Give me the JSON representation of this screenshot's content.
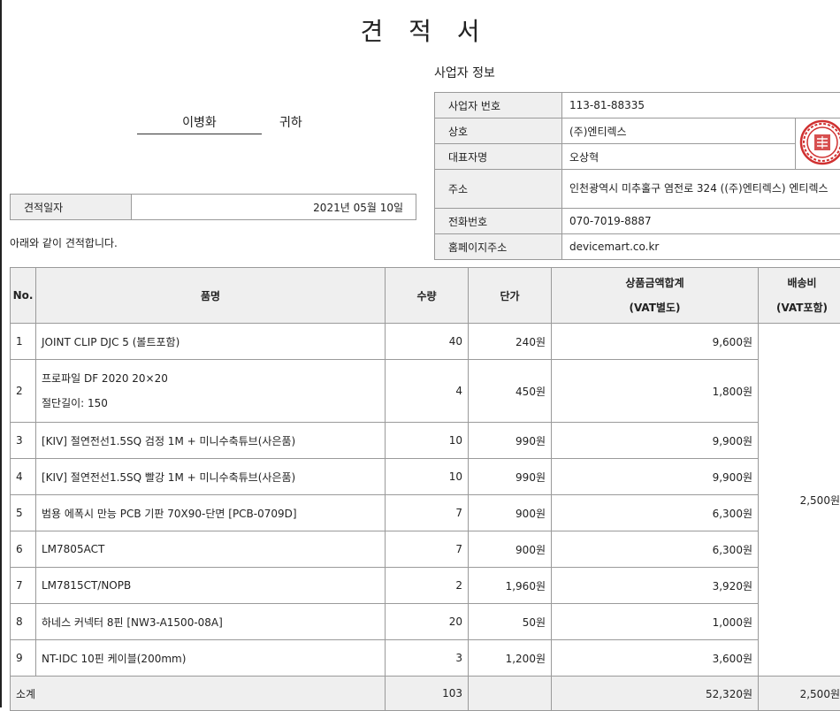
{
  "document": {
    "title": "견 적 서"
  },
  "recipient": {
    "name": "이병화",
    "honorific": "귀하"
  },
  "quote_date": {
    "label": "견적일자",
    "value": "2021년 05월 10일"
  },
  "intro_text": "아래와 같이 견적합니다.",
  "business": {
    "section_title": "사업자 정보",
    "rows": [
      {
        "label": "사업자 번호",
        "value": "113-81-88335"
      },
      {
        "label": "상호",
        "value": "(주)엔티렉스"
      },
      {
        "label": "대표자명",
        "value": "오상혁"
      },
      {
        "label": "주소",
        "value": "인천광역시 미추홀구 염전로 324 ((주)엔티렉스) 엔티렉스"
      },
      {
        "label": "전화번호",
        "value": "070-7019-8887"
      },
      {
        "label": "홈페이지주소",
        "value": "devicemart.co.kr"
      }
    ]
  },
  "table": {
    "headers": {
      "no": "No.",
      "name": "품명",
      "qty": "수량",
      "unit_price": "단가",
      "amount_line1": "상품금액합계",
      "amount_line2": "(VAT별도)",
      "shipping_line1": "배송비",
      "shipping_line2": "(VAT포함)"
    },
    "rows": [
      {
        "no": "1",
        "name": "JOINT CLIP DJC 5 (볼트포함)",
        "name2": "",
        "qty": "40",
        "price": "240원",
        "amount": "9,600원"
      },
      {
        "no": "2",
        "name": "프로파일 DF 2020 20×20",
        "name2": "절단길이: 150",
        "qty": "4",
        "price": "450원",
        "amount": "1,800원"
      },
      {
        "no": "3",
        "name": "[KIV] 절연전선1.5SQ 검정 1M + 미니수축튜브(사은품)",
        "name2": "",
        "qty": "10",
        "price": "990원",
        "amount": "9,900원"
      },
      {
        "no": "4",
        "name": "[KIV] 절연전선1.5SQ 빨강 1M + 미니수축튜브(사은품)",
        "name2": "",
        "qty": "10",
        "price": "990원",
        "amount": "9,900원"
      },
      {
        "no": "5",
        "name": "범용 에폭시 만능 PCB 기판 70X90-단면 [PCB-0709D]",
        "name2": "",
        "qty": "7",
        "price": "900원",
        "amount": "6,300원"
      },
      {
        "no": "6",
        "name": "LM7805ACT",
        "name2": "",
        "qty": "7",
        "price": "900원",
        "amount": "6,300원"
      },
      {
        "no": "7",
        "name": "LM7815CT/NOPB",
        "name2": "",
        "qty": "2",
        "price": "1,960원",
        "amount": "3,920원"
      },
      {
        "no": "8",
        "name": "하네스 커넥터 8핀 [NW3-A1500-08A]",
        "name2": "",
        "qty": "20",
        "price": "50원",
        "amount": "1,000원"
      },
      {
        "no": "9",
        "name": "NT-IDC 10핀 케이블(200mm)",
        "name2": "",
        "qty": "3",
        "price": "1,200원",
        "amount": "3,600원"
      }
    ],
    "shipping_value": "2,500원",
    "subtotal": {
      "label": "소계",
      "qty": "103",
      "amount": "52,320원",
      "shipping": "2,500원"
    }
  },
  "colors": {
    "header_bg": "#efefef",
    "border": "#9a9a9a",
    "seal_red": "#d03030"
  },
  "seal_icon": "company-seal"
}
